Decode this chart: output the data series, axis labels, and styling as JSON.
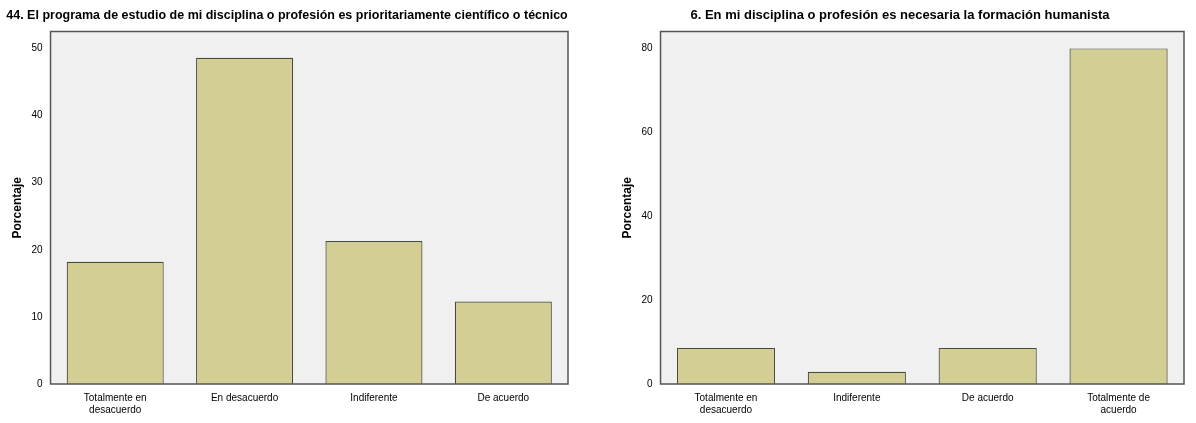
{
  "chart_data": [
    {
      "type": "bar",
      "title": "44. El programa de estudio de mi disciplina o profesión es prioritariamente científico o técnico",
      "ylabel": "Porcentaje",
      "categories": [
        "Totalmente en desacuerdo",
        "En desacuerdo",
        "Indiferente",
        "De acuerdo"
      ],
      "values": [
        18.2,
        48.6,
        21.3,
        12.3
      ],
      "color": "#d3cf94",
      "ylim": [
        0,
        52.5
      ],
      "yticks": [
        0,
        10,
        20,
        30,
        40,
        50
      ],
      "grid": false,
      "legend": false
    },
    {
      "type": "bar",
      "title": "6. En mi disciplina o profesión es necesaria la formación humanista",
      "ylabel": "Porcentaje",
      "categories": [
        "Totalmente en desacuerdo",
        "Indiferente",
        "De acuerdo",
        "Totalmente de acuerdo"
      ],
      "values": [
        8.6,
        2.9,
        8.6,
        80.0
      ],
      "color": "#d3cf94",
      "ylim": [
        0,
        84
      ],
      "yticks": [
        0,
        20,
        40,
        60,
        80
      ],
      "grid": false,
      "legend": false
    }
  ]
}
